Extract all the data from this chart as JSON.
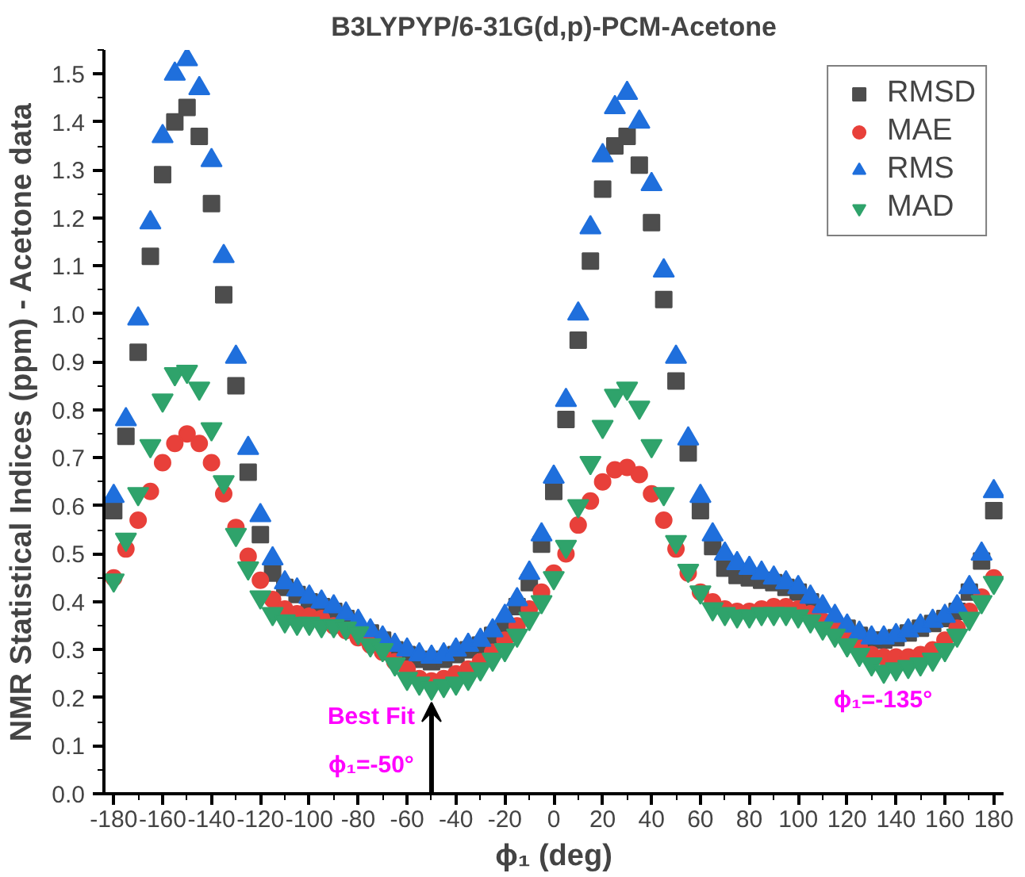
{
  "chart_data": {
    "type": "scatter",
    "title": "B3LYPYP/6-31G(d,p)-PCM-Acetone",
    "xlabel": "ϕ₁ (deg)",
    "ylabel": "NMR Statistical Indices (ppm) - Acetone data",
    "x": [
      -180,
      -175,
      -170,
      -165,
      -160,
      -155,
      -150,
      -145,
      -140,
      -135,
      -130,
      -125,
      -120,
      -115,
      -110,
      -105,
      -100,
      -95,
      -90,
      -85,
      -80,
      -75,
      -70,
      -65,
      -60,
      -55,
      -50,
      -45,
      -40,
      -35,
      -30,
      -25,
      -20,
      -15,
      -10,
      -5,
      0,
      5,
      10,
      15,
      20,
      25,
      30,
      35,
      40,
      45,
      50,
      55,
      60,
      65,
      70,
      75,
      80,
      85,
      90,
      95,
      100,
      105,
      110,
      115,
      120,
      125,
      130,
      135,
      140,
      145,
      150,
      155,
      160,
      165,
      170,
      175,
      180
    ],
    "series": [
      {
        "name": "RMSD",
        "color": "#4d4d4d",
        "values": [
          0.59,
          0.745,
          0.92,
          1.12,
          1.29,
          1.4,
          1.43,
          1.37,
          1.23,
          1.04,
          0.85,
          0.67,
          0.54,
          0.46,
          0.43,
          0.415,
          0.4,
          0.39,
          0.38,
          0.365,
          null,
          0.335,
          0.32,
          0.3,
          0.29,
          0.28,
          0.275,
          0.28,
          0.29,
          0.3,
          0.31,
          0.33,
          0.35,
          0.39,
          0.44,
          0.52,
          0.63,
          0.78,
          0.945,
          1.11,
          1.26,
          1.35,
          1.37,
          1.31,
          1.19,
          1.03,
          0.86,
          0.71,
          0.59,
          0.515,
          0.47,
          0.455,
          0.45,
          0.445,
          0.44,
          0.43,
          0.42,
          0.4,
          null,
          null,
          0.345,
          0.33,
          0.32,
          0.32,
          0.325,
          0.335,
          0.345,
          0.355,
          0.365,
          0.38,
          0.42,
          0.485,
          0.59
        ]
      },
      {
        "name": "MAE",
        "color": "#e8403a",
        "values": [
          0.45,
          0.51,
          0.57,
          0.63,
          0.69,
          0.73,
          0.75,
          0.73,
          0.69,
          0.625,
          0.555,
          0.495,
          0.445,
          0.405,
          0.385,
          0.375,
          0.37,
          0.365,
          0.35,
          0.34,
          0.325,
          0.31,
          0.295,
          0.275,
          0.26,
          0.24,
          0.235,
          0.24,
          0.25,
          0.26,
          0.275,
          0.295,
          0.32,
          0.35,
          0.385,
          0.42,
          0.46,
          0.5,
          0.56,
          0.61,
          0.65,
          0.675,
          0.68,
          0.665,
          0.625,
          0.57,
          0.51,
          0.46,
          0.42,
          0.4,
          0.385,
          0.38,
          0.38,
          0.385,
          0.39,
          0.39,
          0.385,
          0.375,
          0.36,
          0.345,
          0.325,
          0.305,
          0.29,
          0.285,
          0.285,
          0.285,
          0.29,
          0.3,
          0.32,
          0.345,
          0.38,
          0.41,
          0.45
        ]
      },
      {
        "name": "RMS",
        "color": "#1f6fdc",
        "values": [
          0.62,
          0.78,
          0.99,
          1.19,
          1.37,
          1.5,
          1.53,
          1.47,
          1.32,
          1.12,
          0.91,
          0.72,
          0.58,
          0.49,
          0.44,
          0.425,
          0.41,
          0.4,
          0.39,
          0.375,
          0.36,
          0.34,
          0.325,
          0.31,
          0.3,
          0.29,
          0.285,
          0.29,
          0.3,
          0.31,
          0.32,
          0.34,
          0.37,
          0.405,
          0.46,
          0.54,
          0.66,
          0.82,
          1.0,
          1.18,
          1.33,
          1.43,
          1.46,
          1.4,
          1.27,
          1.09,
          0.91,
          0.74,
          0.62,
          0.54,
          0.5,
          0.48,
          0.47,
          0.46,
          0.45,
          0.44,
          0.43,
          0.41,
          0.39,
          0.37,
          0.35,
          0.335,
          0.325,
          0.325,
          0.33,
          0.34,
          0.35,
          0.36,
          0.37,
          0.39,
          0.43,
          0.5,
          0.63
        ]
      },
      {
        "name": "MAD",
        "color": "#2fa36b",
        "values": [
          0.445,
          0.53,
          0.625,
          0.725,
          0.82,
          0.875,
          0.88,
          0.845,
          0.76,
          0.65,
          0.54,
          0.47,
          0.41,
          0.375,
          0.36,
          0.355,
          0.355,
          0.35,
          0.35,
          0.345,
          0.335,
          0.31,
          0.3,
          0.27,
          0.24,
          0.23,
          0.22,
          0.225,
          0.23,
          0.24,
          0.26,
          0.28,
          0.3,
          0.33,
          0.365,
          0.4,
          0.45,
          0.515,
          0.6,
          0.69,
          0.765,
          0.83,
          0.845,
          0.805,
          0.725,
          0.625,
          0.525,
          0.465,
          0.42,
          0.385,
          0.375,
          0.37,
          0.37,
          0.375,
          0.375,
          0.375,
          0.37,
          0.36,
          0.345,
          0.33,
          0.31,
          0.29,
          0.27,
          0.255,
          0.26,
          0.265,
          0.27,
          0.28,
          0.3,
          0.33,
          0.365,
          0.4,
          0.44
        ]
      }
    ],
    "xlim": [
      -184,
      184
    ],
    "xticks": [
      -180,
      -160,
      -140,
      -120,
      -100,
      -80,
      -60,
      -40,
      -20,
      0,
      20,
      40,
      60,
      80,
      100,
      120,
      140,
      160,
      180
    ],
    "ylim": [
      0,
      1.55
    ],
    "yticks": [
      {
        "value": 0,
        "label": "0.0"
      },
      0.1,
      0.2,
      0.3,
      0.4,
      0.5,
      0.6,
      0.7,
      0.8,
      0.9,
      {
        "value": 1,
        "label": "1.0"
      },
      1.1,
      1.2,
      1.3,
      1.4,
      1.5
    ],
    "grid": false,
    "legend": "top right",
    "annotations": [
      {
        "text": "Best Fit",
        "x": -50,
        "y": 0.22
      },
      {
        "text": "ϕ₁=-50°",
        "x": -50,
        "y": 0.22
      },
      "ϕ₁=-135°"
    ]
  }
}
